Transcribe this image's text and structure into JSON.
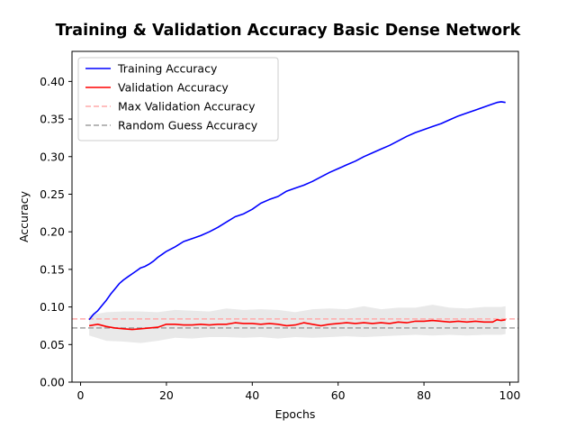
{
  "chart_data": {
    "type": "line",
    "title": "Training & Validation Accuracy Basic Dense Network",
    "xlabel": "Epochs",
    "ylabel": "Accuracy",
    "xlim": [
      -2,
      102
    ],
    "ylim": [
      0.0,
      0.44
    ],
    "xticks": [
      "0",
      "20",
      "40",
      "60",
      "80",
      "100"
    ],
    "yticks": [
      "0.00",
      "0.05",
      "0.10",
      "0.15",
      "0.20",
      "0.25",
      "0.30",
      "0.35",
      "0.40"
    ],
    "legend_position": "top-left",
    "grid": false,
    "series": [
      {
        "name": "Training Accuracy",
        "color": "#0000ff",
        "style": "solid",
        "x": [
          2,
          3,
          4,
          5,
          6,
          7,
          8,
          9,
          10,
          11,
          12,
          13,
          14,
          15,
          16,
          17,
          18,
          19,
          20,
          22,
          24,
          26,
          28,
          30,
          32,
          34,
          36,
          38,
          40,
          42,
          44,
          46,
          48,
          50,
          52,
          54,
          56,
          58,
          60,
          62,
          64,
          66,
          68,
          70,
          72,
          74,
          76,
          78,
          80,
          82,
          84,
          86,
          88,
          90,
          92,
          94,
          96,
          97,
          98,
          99
        ],
        "y": [
          0.083,
          0.09,
          0.095,
          0.102,
          0.109,
          0.117,
          0.124,
          0.131,
          0.136,
          0.14,
          0.144,
          0.148,
          0.152,
          0.154,
          0.157,
          0.161,
          0.166,
          0.17,
          0.174,
          0.18,
          0.187,
          0.191,
          0.195,
          0.2,
          0.206,
          0.213,
          0.22,
          0.224,
          0.23,
          0.238,
          0.243,
          0.247,
          0.254,
          0.258,
          0.262,
          0.267,
          0.273,
          0.279,
          0.284,
          0.289,
          0.294,
          0.3,
          0.305,
          0.31,
          0.315,
          0.321,
          0.327,
          0.332,
          0.336,
          0.34,
          0.344,
          0.349,
          0.354,
          0.358,
          0.362,
          0.366,
          0.37,
          0.372,
          0.373,
          0.372
        ]
      },
      {
        "name": "Validation Accuracy",
        "color": "#ff0000",
        "style": "solid",
        "x": [
          2,
          4,
          6,
          8,
          10,
          12,
          14,
          16,
          18,
          20,
          22,
          24,
          26,
          28,
          30,
          32,
          34,
          36,
          38,
          40,
          42,
          44,
          46,
          48,
          50,
          52,
          54,
          56,
          58,
          60,
          62,
          64,
          66,
          68,
          70,
          72,
          74,
          76,
          78,
          80,
          82,
          84,
          86,
          88,
          90,
          92,
          94,
          96,
          97,
          98,
          99
        ],
        "y": [
          0.075,
          0.077,
          0.074,
          0.072,
          0.071,
          0.07,
          0.071,
          0.072,
          0.073,
          0.077,
          0.077,
          0.076,
          0.076,
          0.077,
          0.076,
          0.077,
          0.077,
          0.079,
          0.078,
          0.078,
          0.077,
          0.078,
          0.077,
          0.075,
          0.076,
          0.079,
          0.077,
          0.075,
          0.077,
          0.078,
          0.079,
          0.078,
          0.079,
          0.078,
          0.079,
          0.078,
          0.08,
          0.079,
          0.081,
          0.081,
          0.082,
          0.081,
          0.08,
          0.081,
          0.08,
          0.081,
          0.08,
          0.08,
          0.083,
          0.082,
          0.083
        ]
      },
      {
        "name": "Max Validation Accuracy",
        "color": "#ffaaaa",
        "style": "dashed",
        "x": [
          -2,
          102
        ],
        "y": [
          0.084,
          0.084
        ]
      },
      {
        "name": "Random Guess Accuracy",
        "color": "#a0a0a0",
        "style": "dashed",
        "x": [
          -2,
          102
        ],
        "y": [
          0.072,
          0.072
        ]
      }
    ],
    "band": {
      "color": "#d3d3d3",
      "x": [
        2,
        6,
        10,
        14,
        18,
        22,
        26,
        30,
        34,
        38,
        42,
        46,
        50,
        54,
        58,
        62,
        66,
        70,
        74,
        78,
        82,
        86,
        90,
        94,
        98,
        99
      ],
      "lower": [
        0.062,
        0.055,
        0.054,
        0.052,
        0.055,
        0.059,
        0.058,
        0.06,
        0.06,
        0.059,
        0.06,
        0.058,
        0.06,
        0.059,
        0.06,
        0.061,
        0.06,
        0.061,
        0.062,
        0.063,
        0.062,
        0.063,
        0.062,
        0.063,
        0.063,
        0.064
      ],
      "upper": [
        0.089,
        0.093,
        0.094,
        0.094,
        0.093,
        0.096,
        0.095,
        0.094,
        0.098,
        0.096,
        0.097,
        0.096,
        0.093,
        0.097,
        0.098,
        0.097,
        0.101,
        0.097,
        0.099,
        0.099,
        0.103,
        0.099,
        0.098,
        0.1,
        0.1,
        0.101
      ]
    }
  }
}
